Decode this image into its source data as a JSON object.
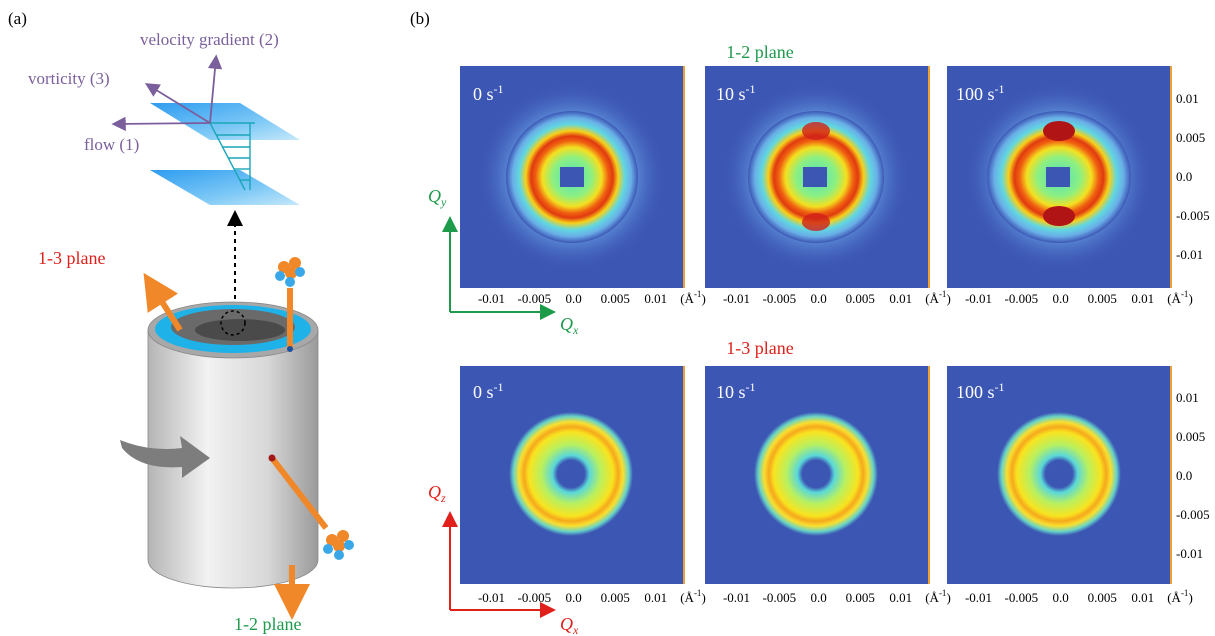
{
  "panel_a": {
    "label": "(a)",
    "velocity_gradient": "velocity gradient (2)",
    "vorticity": "vorticity (3)",
    "flow": "flow (1)",
    "plane_13": "1-3 plane",
    "plane_12": "1-2 plane"
  },
  "panel_b": {
    "label": "(b)",
    "row_12_title": "1-2 plane",
    "row_13_title": "1-3 plane",
    "rates": [
      {
        "value": "0",
        "unit": "s",
        "exp": "-1"
      },
      {
        "value": "10",
        "unit": "s",
        "exp": "-1"
      },
      {
        "value": "100",
        "unit": "s",
        "exp": "-1"
      }
    ],
    "x_ticks": [
      "-0.01",
      "-0.005",
      "0.0",
      "0.005",
      "0.01"
    ],
    "x_unit": "(Å",
    "x_unit_exp": "-1",
    "x_unit_close": ")",
    "y_ticks": [
      "0.01",
      "0.005",
      "0.0",
      "-0.005",
      "-0.01"
    ],
    "axis_12": {
      "h_main": "Q",
      "h_sub": "x",
      "v_main": "Q",
      "v_sub": "y"
    },
    "axis_13": {
      "h_main": "Q",
      "h_sub": "x",
      "v_main": "Q",
      "v_sub": "z"
    }
  },
  "colors": {
    "violet": "#7a5f9c",
    "red": "#e0201b",
    "green": "#1d9a4a",
    "orange": "#f0882a",
    "cyan": "#1fb2e8",
    "map_bg": "#3c56b4",
    "tick_orange": "#f0a030"
  }
}
